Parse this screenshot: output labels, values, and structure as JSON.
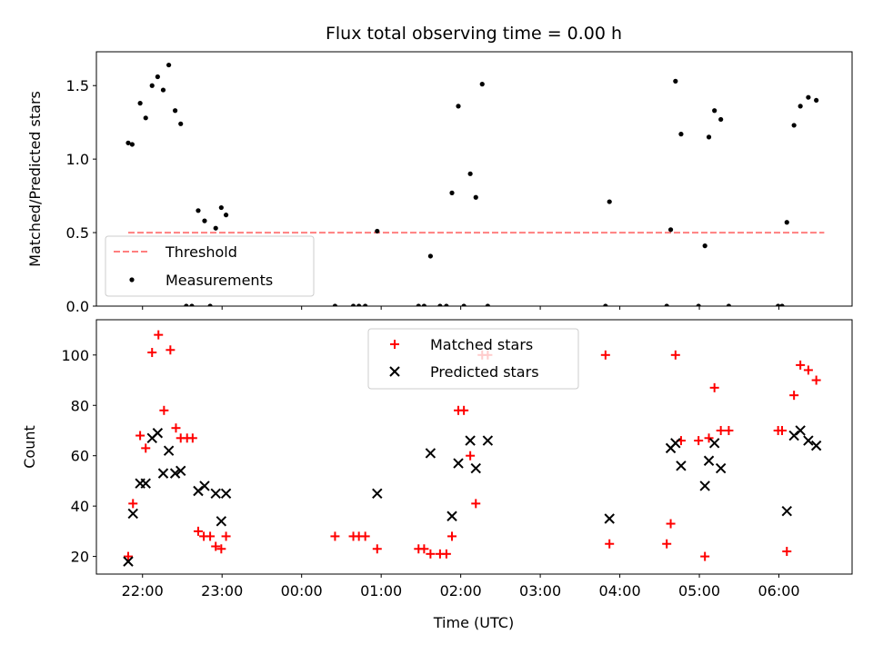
{
  "chart_data": [
    {
      "type": "scatter",
      "title": "Flux total observing time = 0.00 h",
      "xlabel": "",
      "ylabel": "Matched/Predicted stars",
      "xlim": [
        -0.4,
        9.1
      ],
      "ylim": [
        0,
        1.73
      ],
      "yticks": [
        0.0,
        0.5,
        1.0,
        1.5
      ],
      "ytick_labels": [
        "0.0",
        "0.5",
        "1.0",
        "1.5"
      ],
      "legend": {
        "position": "lower-left",
        "entries": [
          "Threshold",
          "Measurements"
        ]
      },
      "threshold": {
        "name": "Threshold",
        "y": 0.5,
        "x": [
          0.0,
          8.75
        ],
        "color": "#ff7f7f",
        "style": "dashed"
      },
      "series": [
        {
          "name": "Measurements",
          "color": "#000000",
          "marker": "dot",
          "points": [
            [
              0.0,
              1.11
            ],
            [
              0.05,
              1.1
            ],
            [
              0.15,
              1.38
            ],
            [
              0.22,
              1.28
            ],
            [
              0.3,
              1.5
            ],
            [
              0.37,
              1.56
            ],
            [
              0.44,
              1.47
            ],
            [
              0.51,
              1.64
            ],
            [
              0.59,
              1.33
            ],
            [
              0.66,
              1.24
            ],
            [
              0.73,
              0.0
            ],
            [
              0.8,
              0.0
            ],
            [
              0.88,
              0.65
            ],
            [
              0.96,
              0.58
            ],
            [
              1.03,
              0.0
            ],
            [
              1.1,
              0.53
            ],
            [
              1.17,
              0.67
            ],
            [
              1.23,
              0.62
            ],
            [
              2.6,
              0.0
            ],
            [
              2.83,
              0.0
            ],
            [
              2.9,
              0.0
            ],
            [
              2.98,
              0.0
            ],
            [
              3.13,
              0.51
            ],
            [
              3.65,
              0.0
            ],
            [
              3.72,
              0.0
            ],
            [
              3.8,
              0.34
            ],
            [
              3.92,
              0.0
            ],
            [
              4.0,
              0.0
            ],
            [
              4.07,
              0.77
            ],
            [
              4.15,
              1.36
            ],
            [
              4.22,
              0.0
            ],
            [
              4.3,
              0.9
            ],
            [
              4.37,
              0.74
            ],
            [
              4.45,
              1.51
            ],
            [
              4.52,
              0.0
            ],
            [
              6.0,
              0.0
            ],
            [
              6.05,
              0.71
            ],
            [
              6.77,
              0.0
            ],
            [
              6.82,
              0.52
            ],
            [
              6.88,
              1.53
            ],
            [
              6.95,
              1.17
            ],
            [
              7.17,
              0.0
            ],
            [
              7.25,
              0.41
            ],
            [
              7.3,
              1.15
            ],
            [
              7.37,
              1.33
            ],
            [
              7.45,
              1.27
            ],
            [
              7.55,
              0.0
            ],
            [
              8.17,
              0.0
            ],
            [
              8.22,
              0.0
            ],
            [
              8.28,
              0.57
            ],
            [
              8.37,
              1.23
            ],
            [
              8.45,
              1.36
            ],
            [
              8.55,
              1.42
            ],
            [
              8.65,
              1.4
            ]
          ]
        }
      ]
    },
    {
      "type": "scatter",
      "title": "",
      "xlabel": "Time (UTC)",
      "ylabel": "Count",
      "xlim": [
        -0.4,
        9.1
      ],
      "ylim": [
        13,
        114
      ],
      "xticks": [
        0.18,
        1.18,
        2.18,
        3.18,
        4.18,
        5.18,
        6.18,
        7.18,
        8.18
      ],
      "xtick_labels": [
        "22:00",
        "23:00",
        "00:00",
        "01:00",
        "02:00",
        "03:00",
        "04:00",
        "05:00",
        "06:00"
      ],
      "yticks": [
        20,
        40,
        60,
        80,
        100
      ],
      "ytick_labels": [
        "20",
        "40",
        "60",
        "80",
        "100"
      ],
      "legend": {
        "position": "upper-center",
        "entries": [
          "Matched stars",
          "Predicted stars"
        ]
      },
      "series": [
        {
          "name": "Matched stars",
          "color": "#ff0000",
          "marker": "plus",
          "points": [
            [
              0.0,
              20
            ],
            [
              0.06,
              41
            ],
            [
              0.15,
              68
            ],
            [
              0.22,
              63
            ],
            [
              0.3,
              101
            ],
            [
              0.38,
              108
            ],
            [
              0.45,
              78
            ],
            [
              0.53,
              102
            ],
            [
              0.6,
              71
            ],
            [
              0.66,
              67
            ],
            [
              0.74,
              67
            ],
            [
              0.81,
              67
            ],
            [
              0.88,
              30
            ],
            [
              0.95,
              28
            ],
            [
              1.03,
              28
            ],
            [
              1.1,
              24
            ],
            [
              1.17,
              23
            ],
            [
              1.23,
              28
            ],
            [
              2.6,
              28
            ],
            [
              2.83,
              28
            ],
            [
              2.9,
              28
            ],
            [
              2.98,
              28
            ],
            [
              3.13,
              23
            ],
            [
              3.65,
              23
            ],
            [
              3.72,
              23
            ],
            [
              3.8,
              21
            ],
            [
              3.92,
              21
            ],
            [
              4.0,
              21
            ],
            [
              4.07,
              28
            ],
            [
              4.15,
              78
            ],
            [
              4.22,
              78
            ],
            [
              4.3,
              60
            ],
            [
              4.37,
              41
            ],
            [
              4.45,
              100
            ],
            [
              4.52,
              100
            ],
            [
              6.0,
              100
            ],
            [
              6.05,
              25
            ],
            [
              6.77,
              25
            ],
            [
              6.82,
              33
            ],
            [
              6.88,
              100
            ],
            [
              6.95,
              66
            ],
            [
              7.17,
              66
            ],
            [
              7.25,
              20
            ],
            [
              7.3,
              67
            ],
            [
              7.37,
              87
            ],
            [
              7.45,
              70
            ],
            [
              7.55,
              70
            ],
            [
              8.17,
              70
            ],
            [
              8.22,
              70
            ],
            [
              8.28,
              22
            ],
            [
              8.37,
              84
            ],
            [
              8.45,
              96
            ],
            [
              8.55,
              94
            ],
            [
              8.65,
              90
            ]
          ]
        },
        {
          "name": "Predicted stars",
          "color": "#000000",
          "marker": "x",
          "points": [
            [
              0.0,
              18
            ],
            [
              0.06,
              37
            ],
            [
              0.15,
              49
            ],
            [
              0.22,
              49
            ],
            [
              0.3,
              67
            ],
            [
              0.37,
              69
            ],
            [
              0.44,
              53
            ],
            [
              0.51,
              62
            ],
            [
              0.59,
              53
            ],
            [
              0.66,
              54
            ],
            [
              0.88,
              46
            ],
            [
              0.96,
              48
            ],
            [
              1.1,
              45
            ],
            [
              1.17,
              34
            ],
            [
              1.23,
              45
            ],
            [
              3.13,
              45
            ],
            [
              3.8,
              61
            ],
            [
              4.07,
              36
            ],
            [
              4.15,
              57
            ],
            [
              4.3,
              66
            ],
            [
              4.37,
              55
            ],
            [
              4.52,
              66
            ],
            [
              6.05,
              35
            ],
            [
              6.82,
              63
            ],
            [
              6.88,
              65
            ],
            [
              6.95,
              56
            ],
            [
              7.25,
              48
            ],
            [
              7.3,
              58
            ],
            [
              7.37,
              65
            ],
            [
              7.45,
              55
            ],
            [
              8.28,
              38
            ],
            [
              8.37,
              68
            ],
            [
              8.45,
              70
            ],
            [
              8.55,
              66
            ],
            [
              8.65,
              64
            ]
          ]
        }
      ]
    }
  ]
}
